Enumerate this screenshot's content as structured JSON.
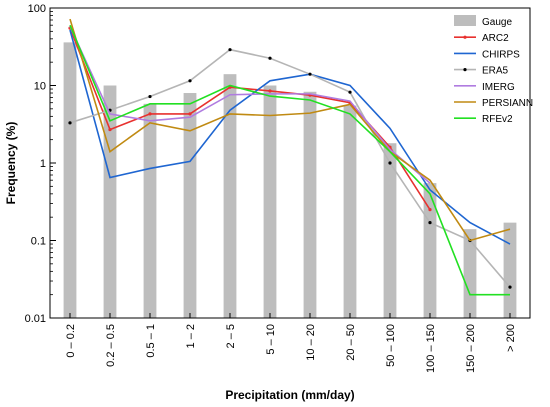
{
  "chart_data": {
    "type": "bar",
    "title": "",
    "xlabel": "Precipitation (mm/day)",
    "ylabel": "Frequency (%)",
    "yscale": "log",
    "ylim": [
      0.01,
      100
    ],
    "yticks": [
      "0.01",
      "0.1",
      "1",
      "10",
      "100"
    ],
    "grid": false,
    "legend_position": "top-right",
    "categories": [
      "0 – 0.2",
      "0.2 – 0.5",
      "0.5 – 1",
      "1 – 2",
      "2 – 5",
      "5 – 10",
      "10 – 20",
      "20 – 50",
      "50 – 100",
      "100 – 150",
      "150 – 200",
      "> 200"
    ],
    "bars": {
      "name": "Gauge",
      "color": "#bdbdbd",
      "values": [
        36,
        10,
        5.8,
        8,
        14,
        10,
        8.3,
        5.5,
        1.8,
        0.55,
        0.14,
        0.17
      ]
    },
    "series": [
      {
        "name": "ARC2",
        "color": "#e8312f",
        "marker": true,
        "values": [
          55,
          2.7,
          4.3,
          4.3,
          9.5,
          8.5,
          7.5,
          6.0,
          1.6,
          0.25,
          null,
          null
        ]
      },
      {
        "name": "CHIRPS",
        "color": "#1f66d1",
        "marker": false,
        "values": [
          52,
          0.65,
          0.85,
          1.05,
          4.8,
          11.5,
          14,
          10,
          2.8,
          0.45,
          0.17,
          0.09
        ]
      },
      {
        "name": "ERA5",
        "color": "#b5b5b5",
        "marker": true,
        "values": [
          3.3,
          4.8,
          7.2,
          11.5,
          29,
          22.5,
          14,
          8.2,
          1.0,
          0.17,
          0.1,
          0.025
        ]
      },
      {
        "name": "IMERG",
        "color": "#b07ce0",
        "marker": false,
        "values": [
          58,
          4.3,
          3.5,
          3.9,
          7.6,
          7.8,
          7.8,
          6.3,
          1.5,
          0.55,
          null,
          null
        ]
      },
      {
        "name": "PERSIANN",
        "color": "#c08a12",
        "marker": false,
        "values": [
          72,
          1.4,
          3.3,
          2.6,
          4.3,
          4.1,
          4.4,
          5.7,
          1.4,
          0.6,
          0.1,
          0.14
        ]
      },
      {
        "name": "RFEv2",
        "color": "#22e022",
        "marker": false,
        "values": [
          60,
          3.5,
          5.8,
          5.8,
          10,
          7.3,
          6.5,
          4.3,
          1.4,
          0.4,
          0.02,
          0.02
        ]
      }
    ]
  }
}
